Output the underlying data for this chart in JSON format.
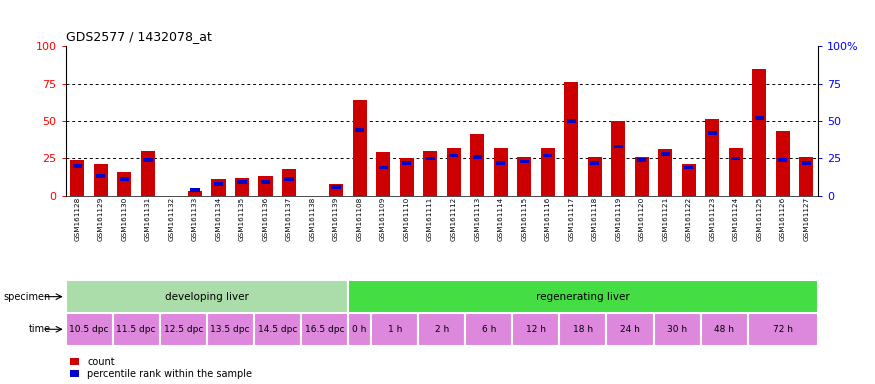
{
  "title": "GDS2577 / 1432078_at",
  "samples": [
    "GSM161128",
    "GSM161129",
    "GSM161130",
    "GSM161131",
    "GSM161132",
    "GSM161133",
    "GSM161134",
    "GSM161135",
    "GSM161136",
    "GSM161137",
    "GSM161138",
    "GSM161139",
    "GSM161108",
    "GSM161109",
    "GSM161110",
    "GSM161111",
    "GSM161112",
    "GSM161113",
    "GSM161114",
    "GSM161115",
    "GSM161116",
    "GSM161117",
    "GSM161118",
    "GSM161119",
    "GSM161120",
    "GSM161121",
    "GSM161122",
    "GSM161123",
    "GSM161124",
    "GSM161125",
    "GSM161126",
    "GSM161127"
  ],
  "count_values": [
    24,
    21,
    16,
    30,
    0,
    3,
    11,
    12,
    13,
    18,
    0,
    8,
    64,
    29,
    25,
    30,
    32,
    41,
    32,
    26,
    32,
    76,
    26,
    50,
    26,
    31,
    21,
    51,
    32,
    85,
    43,
    26
  ],
  "percentile_values": [
    20,
    13,
    11,
    24,
    0,
    4,
    8,
    9,
    9,
    11,
    0,
    6,
    44,
    19,
    22,
    25,
    27,
    26,
    22,
    23,
    27,
    50,
    22,
    33,
    24,
    28,
    19,
    42,
    25,
    52,
    24,
    22
  ],
  "bar_color": "#cc0000",
  "percentile_color": "#0000cc",
  "bg_color": "#ffffff",
  "ylim": [
    0,
    100
  ],
  "yticks": [
    0,
    25,
    50,
    75,
    100
  ],
  "ytick_labels_left": [
    "0",
    "25",
    "50",
    "75",
    "100"
  ],
  "ytick_labels_right": [
    "0",
    "25",
    "50",
    "75",
    "100%"
  ],
  "grid_lines": [
    25,
    50,
    75
  ],
  "specimen_groups": [
    {
      "label": "developing liver",
      "start": 0,
      "end": 12,
      "color": "#aaddaa"
    },
    {
      "label": "regenerating liver",
      "start": 12,
      "end": 32,
      "color": "#44dd44"
    }
  ],
  "time_groups": [
    {
      "label": "10.5 dpc",
      "start": 0,
      "end": 2
    },
    {
      "label": "11.5 dpc",
      "start": 2,
      "end": 4
    },
    {
      "label": "12.5 dpc",
      "start": 4,
      "end": 6
    },
    {
      "label": "13.5 dpc",
      "start": 6,
      "end": 8
    },
    {
      "label": "14.5 dpc",
      "start": 8,
      "end": 10
    },
    {
      "label": "16.5 dpc",
      "start": 10,
      "end": 12
    },
    {
      "label": "0 h",
      "start": 12,
      "end": 13
    },
    {
      "label": "1 h",
      "start": 13,
      "end": 15
    },
    {
      "label": "2 h",
      "start": 15,
      "end": 17
    },
    {
      "label": "6 h",
      "start": 17,
      "end": 19
    },
    {
      "label": "12 h",
      "start": 19,
      "end": 21
    },
    {
      "label": "18 h",
      "start": 21,
      "end": 23
    },
    {
      "label": "24 h",
      "start": 23,
      "end": 25
    },
    {
      "label": "30 h",
      "start": 25,
      "end": 27
    },
    {
      "label": "48 h",
      "start": 27,
      "end": 29
    },
    {
      "label": "72 h",
      "start": 29,
      "end": 32
    }
  ],
  "time_color": "#dd88dd",
  "legend_items": [
    {
      "label": "count",
      "color": "#cc0000"
    },
    {
      "label": "percentile rank within the sample",
      "color": "#0000cc"
    }
  ]
}
